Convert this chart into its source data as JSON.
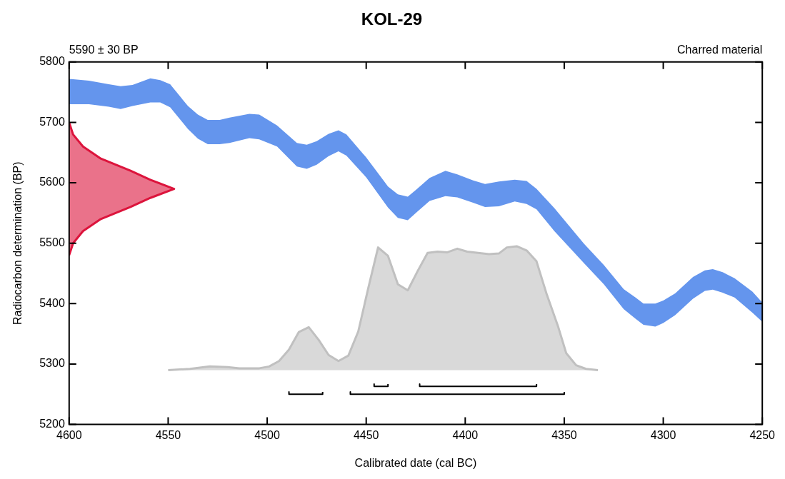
{
  "chart_data": {
    "type": "area",
    "title": "KOL-29",
    "xlabel": "Calibrated date (cal BC)",
    "ylabel": "Radiocarbon determination (BP)",
    "annotations": [
      "5590 ± 30 BP",
      "Charred material"
    ],
    "xlim": [
      4600,
      4250
    ],
    "xticks": [
      4600,
      4550,
      4500,
      4450,
      4400,
      4350,
      4300,
      4250
    ],
    "ylim": [
      5200,
      5800
    ],
    "yticks": [
      5200,
      5300,
      5400,
      5500,
      5600,
      5700,
      5800
    ],
    "series": [
      {
        "color": "#6495ed",
        "x": [
          4600,
          4590,
          4580,
          4574,
          4568,
          4559,
          4554,
          4549,
          4540,
          4535,
          4530,
          4524,
          4519,
          4509,
          4504,
          4495,
          4485,
          4480,
          4475,
          4469,
          4464,
          4460,
          4450,
          4439,
          4434,
          4429,
          4425,
          4418,
          4410,
          4404,
          4396,
          4390,
          4383,
          4375,
          4369,
          4364,
          4355,
          4340,
          4330,
          4320,
          4314,
          4310,
          4304,
          4300,
          4294,
          4285,
          4279,
          4275,
          4270,
          4264,
          4255,
          4250
        ],
        "values": [
          null,
          null,
          null,
          null,
          null,
          null,
          null,
          null,
          null,
          null,
          null,
          null,
          null,
          null,
          null,
          null,
          null,
          null,
          null,
          null,
          null,
          null,
          null,
          null,
          null,
          null,
          null,
          null,
          null,
          null,
          null,
          null,
          null,
          null,
          null,
          null,
          null,
          null,
          null,
          null,
          null,
          null,
          null,
          null,
          null,
          null,
          null,
          null,
          null,
          null,
          null,
          null
        ],
        "upper": [
          5772,
          5769,
          5763,
          5760,
          5762,
          5773,
          5770,
          5763,
          5727,
          5713,
          5704,
          5704,
          5708,
          5714,
          5713,
          5695,
          5666,
          5663,
          5669,
          5681,
          5687,
          5680,
          5642,
          5594,
          5581,
          5577,
          5588,
          5608,
          5620,
          5614,
          5604,
          5598,
          5602,
          5605,
          5603,
          5590,
          5558,
          5499,
          5464,
          5424,
          5410,
          5400,
          5400,
          5405,
          5417,
          5444,
          5455,
          5457,
          5452,
          5442,
          5420,
          5402
        ],
        "lower": [
          5730,
          5730,
          5726,
          5722,
          5727,
          5733,
          5733,
          5725,
          5689,
          5673,
          5664,
          5664,
          5666,
          5674,
          5672,
          5660,
          5627,
          5623,
          5630,
          5644,
          5652,
          5645,
          5609,
          5559,
          5542,
          5538,
          5550,
          5570,
          5578,
          5576,
          5567,
          5560,
          5561,
          5569,
          5565,
          5556,
          5520,
          5467,
          5432,
          5391,
          5375,
          5365,
          5362,
          5368,
          5381,
          5408,
          5421,
          5423,
          5418,
          5410,
          5385,
          5370
        ]
      },
      {
        "color": "#dc143c",
        "x": [
          4600,
          4598,
          4593,
          4584,
          4569,
          4559,
          4547,
          4559,
          4569,
          4584,
          4593,
          4598,
          4600
        ],
        "values": [
          5480,
          5500,
          5520,
          5540,
          5560,
          5575,
          5590,
          5605,
          5620,
          5640,
          5660,
          5680,
          5700
        ]
      },
      {
        "color": "#c0c0c0",
        "x": [
          4550,
          4539,
          4529,
          4520,
          4514,
          4504,
          4499,
          4494,
          4489,
          4484,
          4479,
          4474,
          4469,
          4464,
          4459,
          4454,
          4449,
          4444,
          4439,
          4434,
          4429,
          4424,
          4419,
          4414,
          4409,
          4404,
          4399,
          4388,
          4383,
          4379,
          4374,
          4369,
          4364,
          4359,
          4353,
          4349,
          4344,
          4339,
          4333
        ],
        "values": [
          5290,
          5292,
          5296,
          5295,
          5293,
          5293,
          5296,
          5305,
          5324,
          5353,
          5361,
          5340,
          5315,
          5305,
          5314,
          5354,
          5425,
          5493,
          5479,
          5432,
          5422,
          5454,
          5484,
          5486,
          5485,
          5491,
          5486,
          5482,
          5483,
          5493,
          5495,
          5488,
          5470,
          5417,
          5361,
          5318,
          5298,
          5292,
          5290
        ]
      },
      {
        "type": "line",
        "color": "#000000",
        "x": [
          4489,
          4489,
          4472,
          4472
        ],
        "values": [
          5254,
          5250,
          5250,
          5254
        ]
      },
      {
        "type": "line",
        "color": "#000000",
        "x": [
          4458,
          4458,
          4350,
          4350
        ],
        "values": [
          5254,
          5250,
          5250,
          5254
        ]
      },
      {
        "type": "line",
        "color": "#000000",
        "x": [
          4446,
          4446,
          4439,
          4439
        ],
        "values": [
          5267,
          5263,
          5263,
          5267
        ]
      },
      {
        "type": "line",
        "color": "#000000",
        "x": [
          4423,
          4423,
          4364,
          4364
        ],
        "values": [
          5267,
          5263,
          5263,
          5267
        ]
      }
    ]
  }
}
